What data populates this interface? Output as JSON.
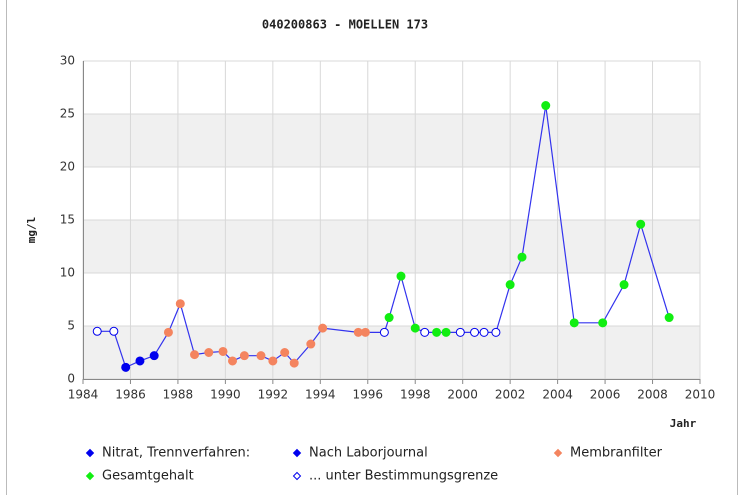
{
  "chart_data": {
    "type": "line",
    "title": "040200863 - MOELLEN 173",
    "ylabel": "mg/l",
    "xlabel": "Jahr",
    "xlim": [
      1984,
      2010
    ],
    "xticks": [
      1984,
      1986,
      1988,
      1990,
      1992,
      1994,
      1996,
      1998,
      2000,
      2002,
      2004,
      2006,
      2008,
      2010
    ],
    "ylim": [
      0,
      30
    ],
    "yticks": [
      0,
      5,
      10,
      15,
      20,
      25,
      30
    ],
    "grid": true,
    "bands": true,
    "line_color": "#3333ee",
    "legend": [
      {
        "name": "Nitrat, Trennverfahren:",
        "color": "#0000ee",
        "filled": true
      },
      {
        "name": "Nach Laborjournal",
        "color": "#0000ee",
        "filled": true
      },
      {
        "name": "Membranfilter",
        "color": "#f4845f",
        "filled": true
      },
      {
        "name": "Gesamtgehalt",
        "color": "#11ee11",
        "filled": true
      },
      {
        "name": "... unter Bestimmungsgrenze",
        "color": "#0000ee",
        "filled": false
      }
    ],
    "x": [
      1984.6,
      1985.3,
      1985.8,
      1986.4,
      1987.0,
      1987.6,
      1988.1,
      1988.7,
      1989.3,
      1989.9,
      1990.3,
      1990.8,
      1991.5,
      1992.0,
      1992.5,
      1992.9,
      1993.6,
      1994.1,
      1995.6,
      1995.9,
      1996.7,
      1996.9,
      1997.4,
      1998.0,
      1998.4,
      1998.9,
      1999.3,
      1999.9,
      2000.5,
      2000.9,
      2001.4,
      2002.0,
      2002.5,
      2003.5,
      2004.7,
      2005.9,
      2006.8,
      2007.5,
      2008.7
    ],
    "values": [
      4.5,
      4.5,
      1.1,
      1.7,
      2.2,
      4.4,
      7.1,
      2.3,
      2.5,
      2.6,
      1.7,
      2.2,
      2.2,
      1.7,
      2.5,
      1.5,
      3.3,
      4.8,
      4.4,
      4.4,
      4.4,
      5.8,
      9.7,
      4.8,
      4.4,
      4.4,
      4.4,
      4.4,
      4.4,
      4.4,
      4.4,
      8.9,
      11.5,
      25.8,
      5.3,
      5.3,
      8.9,
      14.6,
      5.8
    ],
    "point_group": [
      4,
      4,
      1,
      1,
      1,
      2,
      2,
      2,
      2,
      2,
      2,
      2,
      2,
      2,
      2,
      2,
      2,
      2,
      2,
      2,
      4,
      3,
      3,
      3,
      4,
      3,
      3,
      4,
      4,
      4,
      4,
      3,
      3,
      3,
      3,
      3,
      3,
      3,
      3
    ]
  }
}
